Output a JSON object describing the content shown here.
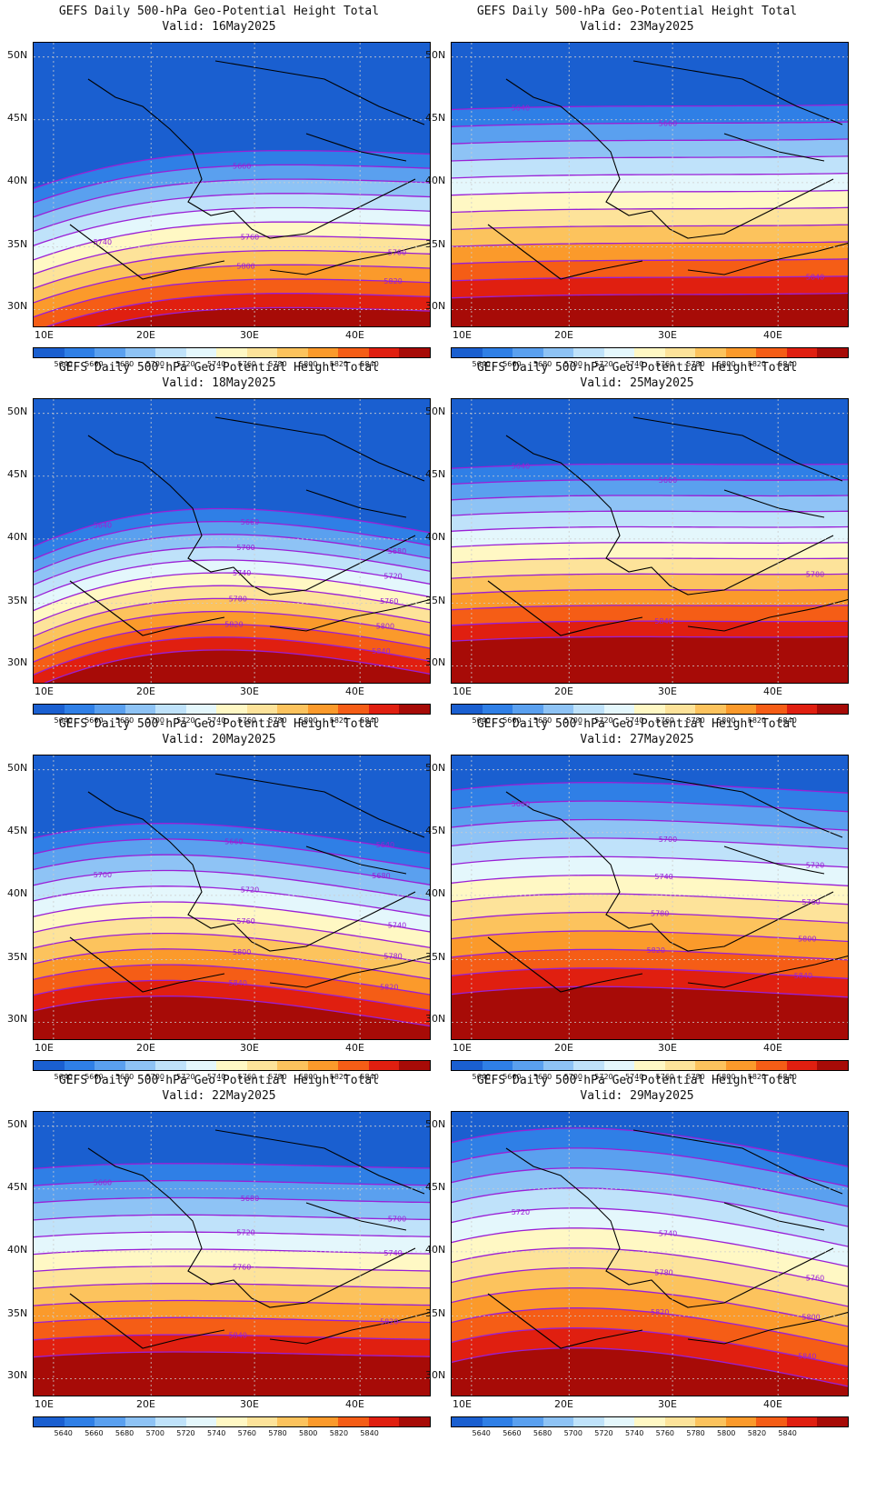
{
  "colorbar": {
    "colors": [
      "#1a5fd0",
      "#2f7fe6",
      "#5aa0ef",
      "#8ec3f5",
      "#bfe2fa",
      "#e4f7fc",
      "#fff8c4",
      "#fde39a",
      "#fcc35d",
      "#fb9a2b",
      "#f55d16",
      "#e01f10",
      "#a70b07"
    ],
    "labels": [
      "5640",
      "5660",
      "5680",
      "5700",
      "5720",
      "5740",
      "5760",
      "5780",
      "5800",
      "5820",
      "5840"
    ]
  },
  "axes": {
    "lat_labels": [
      "50N",
      "45N",
      "40N",
      "35N",
      "30N"
    ],
    "lon_labels": [
      "10E",
      "20E",
      "30E",
      "40E"
    ]
  },
  "panels": [
    {
      "title": "GEFS Daily 500-hPa Geo-Potential Height Total",
      "valid": "Valid: 16May2025",
      "contour_labels": [
        "5740",
        "5760",
        "5780",
        "5800",
        "5820",
        "5660"
      ]
    },
    {
      "title": "GEFS Daily 500-hPa Geo-Potential Height Total",
      "valid": "Valid: 23May2025",
      "contour_labels": [
        "5640",
        "5660",
        "5840"
      ]
    },
    {
      "title": "GEFS Daily 500-hPa Geo-Potential Height Total",
      "valid": "Valid: 18May2025",
      "contour_labels": [
        "5640",
        "5660",
        "5680",
        "5700",
        "5720",
        "5740",
        "5760",
        "5780",
        "5800",
        "5820",
        "5840"
      ]
    },
    {
      "title": "GEFS Daily 500-hPa Geo-Potential Height Total",
      "valid": "Valid: 25May2025",
      "contour_labels": [
        "5640",
        "5660",
        "5780",
        "5840"
      ]
    },
    {
      "title": "GEFS Daily 500-hPa Geo-Potential Height Total",
      "valid": "Valid: 20May2025",
      "contour_labels": [
        "5700",
        "5720",
        "5740",
        "5760",
        "5780",
        "5800",
        "5820",
        "5840",
        "5640",
        "5660",
        "5680"
      ]
    },
    {
      "title": "GEFS Daily 500-hPa Geo-Potential Height Total",
      "valid": "Valid: 27May2025",
      "contour_labels": [
        "5660",
        "5700",
        "5720",
        "5740",
        "5760",
        "5780",
        "5800",
        "5820",
        "5840"
      ]
    },
    {
      "title": "GEFS Daily 500-hPa Geo-Potential Height Total",
      "valid": "Valid: 22May2025",
      "contour_labels": [
        "5660",
        "5680",
        "5700",
        "5720",
        "5740",
        "5760",
        "5820",
        "5840"
      ]
    },
    {
      "title": "GEFS Daily 500-hPa Geo-Potential Height Total",
      "valid": "Valid: 29May2025",
      "contour_labels": [
        "5720",
        "5740",
        "5760",
        "5780",
        "5800",
        "5820",
        "5840"
      ]
    }
  ]
}
